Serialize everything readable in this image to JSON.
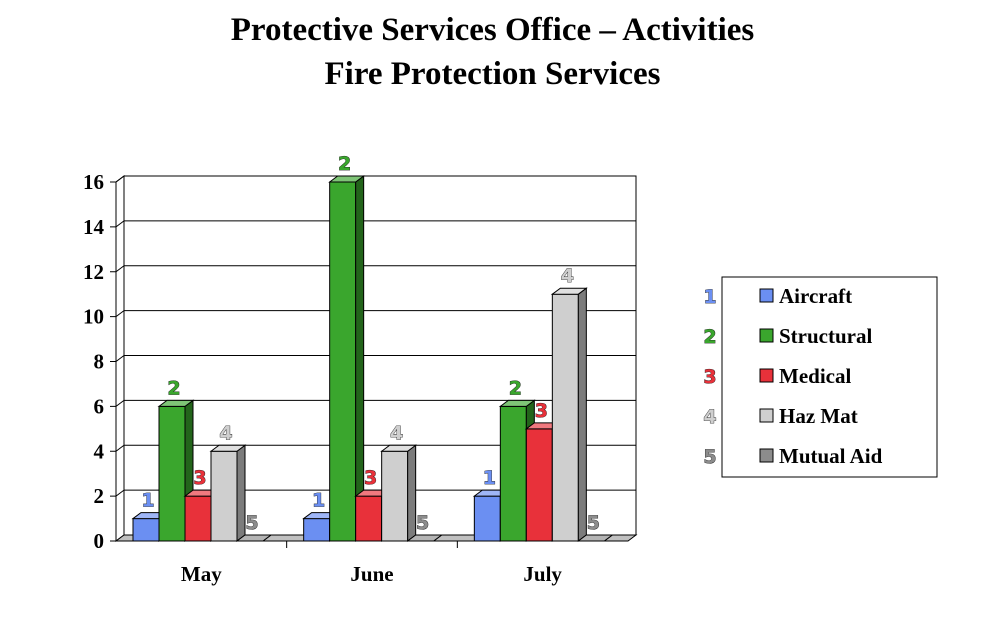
{
  "chart_data": {
    "type": "bar",
    "title_lines": [
      "Protective Services Office – Activities",
      "Fire Protection Services"
    ],
    "categories": [
      "May",
      "June",
      "July"
    ],
    "series": [
      {
        "name": "Aircraft",
        "label": "1",
        "color": "#6b8ff2",
        "values": [
          1,
          1,
          2
        ]
      },
      {
        "name": "Structural",
        "label": "2",
        "color": "#3aa62d",
        "values": [
          6,
          16,
          6
        ]
      },
      {
        "name": "Medical",
        "label": "3",
        "color": "#e8313a",
        "values": [
          2,
          2,
          5
        ]
      },
      {
        "name": "Haz Mat",
        "label": "4",
        "color": "#cfcfcf",
        "values": [
          4,
          4,
          11
        ]
      },
      {
        "name": "Mutual Aid",
        "label": "5",
        "color": "#8c8c8c",
        "values": [
          0,
          0,
          0
        ]
      }
    ],
    "ylim": [
      0,
      16
    ],
    "yticks": [
      "0",
      "2",
      "4",
      "6",
      "8",
      "10",
      "12",
      "14",
      "16"
    ],
    "grid": true,
    "legend_position": "right",
    "style": "3d-bars"
  }
}
